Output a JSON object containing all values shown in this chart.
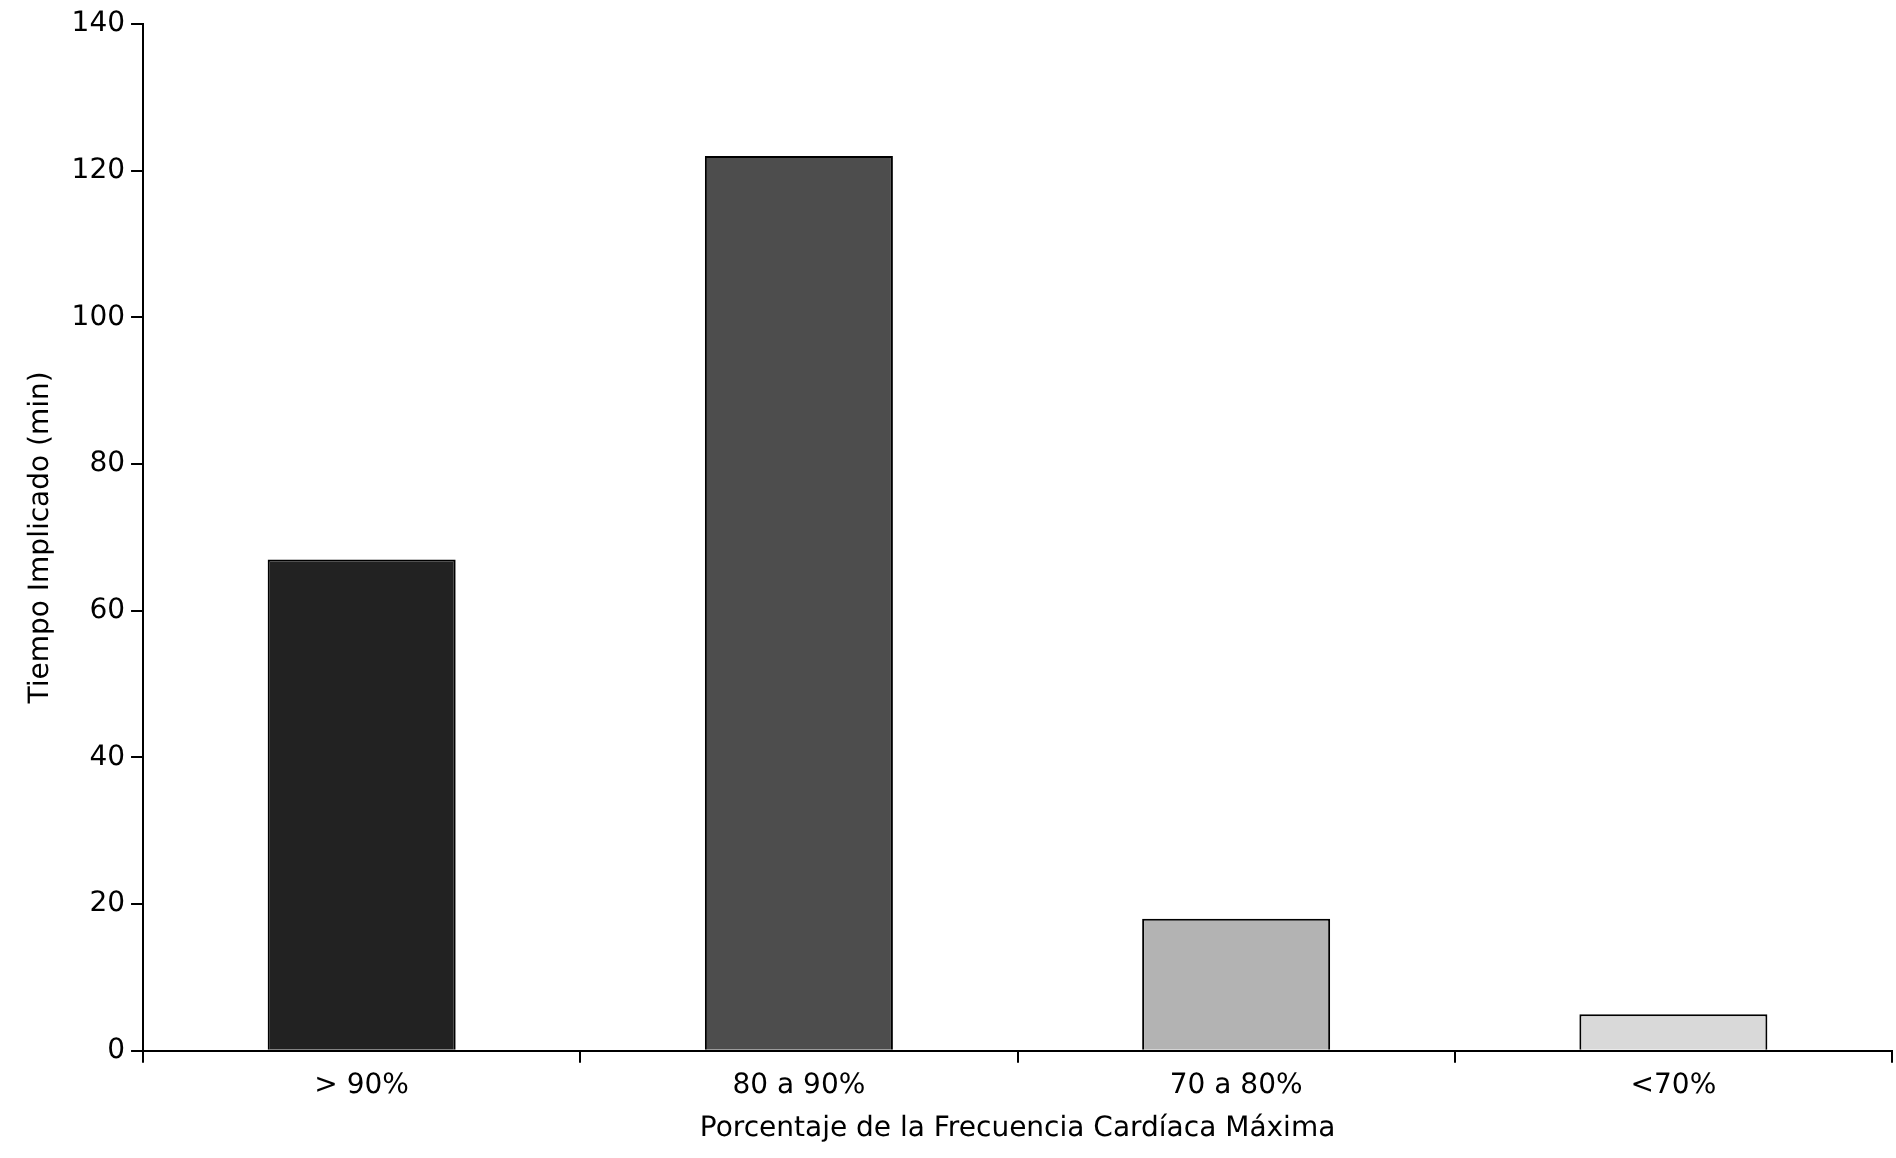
{
  "chart_data": {
    "type": "bar",
    "xlabel": "Porcentaje de la Frecuencia Cardíaca Máxima",
    "ylabel": "Tiempo Implicado (min)",
    "categories": [
      "> 90%",
      "80 a 90%",
      "70 a 80%",
      "<70%"
    ],
    "values": [
      67,
      122,
      18,
      5
    ],
    "colors": [
      "#222222",
      "#4d4d4d",
      "#b3b3b3",
      "#d9d9d9"
    ],
    "ylim": [
      0,
      140
    ],
    "yticks": [
      0,
      20,
      40,
      60,
      80,
      100,
      120,
      140
    ],
    "grid": false,
    "legend": false
  }
}
